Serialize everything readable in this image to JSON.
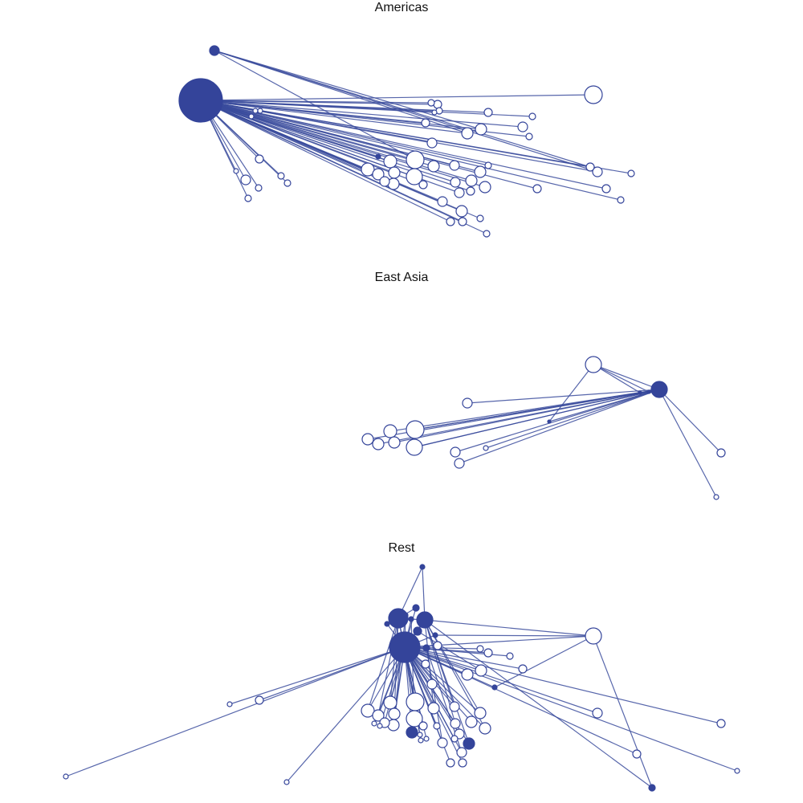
{
  "colors": {
    "edge": "#3a4b9c",
    "hub_fill": "#34449a",
    "leaf_fill": "#ffffff",
    "node_stroke": "#34449a"
  },
  "panels": [
    {
      "title": "Americas",
      "oy": 0,
      "nodes": [
        [
          250,
          125,
          27,
          "hub"
        ],
        [
          267,
          63,
          6,
          "hub"
        ],
        [
          739,
          118,
          11,
          "leaf"
        ],
        [
          537,
          128,
          4,
          "leaf"
        ],
        [
          545,
          130,
          5,
          "leaf"
        ],
        [
          547,
          138,
          4,
          "leaf"
        ],
        [
          541,
          140,
          3,
          "leaf"
        ],
        [
          608,
          140,
          5,
          "leaf"
        ],
        [
          663,
          145,
          4,
          "leaf"
        ],
        [
          651,
          158,
          6,
          "leaf"
        ],
        [
          659,
          170,
          4,
          "leaf"
        ],
        [
          530,
          153,
          5,
          "leaf"
        ],
        [
          599,
          161,
          7,
          "leaf"
        ],
        [
          582,
          166,
          7,
          "leaf"
        ],
        [
          538,
          178,
          6,
          "leaf"
        ],
        [
          318,
          138,
          3,
          "leaf"
        ],
        [
          324,
          138,
          3,
          "leaf"
        ],
        [
          313,
          145,
          3,
          "leaf"
        ],
        [
          471,
          195,
          3,
          "hub"
        ],
        [
          517,
          199,
          11,
          "leaf"
        ],
        [
          486,
          201,
          8,
          "leaf"
        ],
        [
          540,
          207,
          7,
          "leaf"
        ],
        [
          566,
          206,
          6,
          "leaf"
        ],
        [
          608,
          206,
          4,
          "leaf"
        ],
        [
          598,
          214,
          7,
          "leaf"
        ],
        [
          458,
          211,
          8,
          "leaf"
        ],
        [
          471,
          217,
          7,
          "leaf"
        ],
        [
          491,
          215,
          7,
          "leaf"
        ],
        [
          516,
          220,
          10,
          "leaf"
        ],
        [
          479,
          226,
          6,
          "leaf"
        ],
        [
          490,
          229,
          7,
          "leaf"
        ],
        [
          527,
          230,
          5,
          "leaf"
        ],
        [
          567,
          227,
          6,
          "leaf"
        ],
        [
          587,
          225,
          7,
          "leaf"
        ],
        [
          604,
          233,
          7,
          "leaf"
        ],
        [
          572,
          240,
          6,
          "leaf"
        ],
        [
          586,
          238,
          5,
          "leaf"
        ],
        [
          669,
          235,
          5,
          "leaf"
        ],
        [
          551,
          251,
          6,
          "leaf"
        ],
        [
          575,
          263,
          7,
          "leaf"
        ],
        [
          598,
          272,
          4,
          "leaf"
        ],
        [
          561,
          276,
          5,
          "leaf"
        ],
        [
          576,
          276,
          5,
          "leaf"
        ],
        [
          606,
          291,
          4,
          "leaf"
        ],
        [
          735,
          208,
          5,
          "leaf"
        ],
        [
          744,
          214,
          6,
          "leaf"
        ],
        [
          786,
          216,
          4,
          "leaf"
        ],
        [
          755,
          235,
          5,
          "leaf"
        ],
        [
          773,
          249,
          4,
          "leaf"
        ],
        [
          323,
          198,
          5,
          "leaf"
        ],
        [
          294,
          213,
          3,
          "leaf"
        ],
        [
          306,
          224,
          6,
          "leaf"
        ],
        [
          350,
          219,
          4,
          "leaf"
        ],
        [
          358,
          228,
          4,
          "leaf"
        ],
        [
          322,
          234,
          4,
          "leaf"
        ],
        [
          309,
          247,
          4,
          "leaf"
        ]
      ],
      "edges": [
        [
          0,
          2
        ],
        [
          0,
          3
        ],
        [
          0,
          4
        ],
        [
          0,
          5
        ],
        [
          0,
          6
        ],
        [
          0,
          7
        ],
        [
          0,
          8
        ],
        [
          0,
          9
        ],
        [
          0,
          10
        ],
        [
          0,
          11
        ],
        [
          0,
          12
        ],
        [
          0,
          13
        ],
        [
          0,
          14
        ],
        [
          0,
          15
        ],
        [
          0,
          16
        ],
        [
          0,
          17
        ],
        [
          0,
          18
        ],
        [
          0,
          19
        ],
        [
          0,
          20
        ],
        [
          0,
          21
        ],
        [
          0,
          22
        ],
        [
          0,
          23
        ],
        [
          0,
          24
        ],
        [
          0,
          25
        ],
        [
          0,
          26
        ],
        [
          0,
          27
        ],
        [
          0,
          28
        ],
        [
          0,
          29
        ],
        [
          0,
          30
        ],
        [
          0,
          31
        ],
        [
          0,
          32
        ],
        [
          0,
          33
        ],
        [
          0,
          34
        ],
        [
          0,
          35
        ],
        [
          0,
          36
        ],
        [
          0,
          37
        ],
        [
          0,
          38
        ],
        [
          0,
          39
        ],
        [
          0,
          40
        ],
        [
          0,
          41
        ],
        [
          0,
          42
        ],
        [
          0,
          43
        ],
        [
          0,
          44
        ],
        [
          0,
          45
        ],
        [
          0,
          46
        ],
        [
          0,
          47
        ],
        [
          0,
          48
        ],
        [
          0,
          49
        ],
        [
          0,
          50
        ],
        [
          0,
          51
        ],
        [
          0,
          52
        ],
        [
          0,
          53
        ],
        [
          0,
          54
        ],
        [
          0,
          55
        ],
        [
          1,
          44
        ],
        [
          1,
          45
        ],
        [
          1,
          12
        ],
        [
          1,
          19
        ],
        [
          1,
          13
        ]
      ]
    },
    {
      "title": "East Asia",
      "oy": 336,
      "nodes": [
        [
          821,
          149,
          10,
          "hub"
        ],
        [
          797,
          153,
          2,
          "hub"
        ],
        [
          808,
          152,
          2,
          "hub"
        ],
        [
          684,
          189,
          2,
          "hub"
        ],
        [
          739,
          118,
          10,
          "leaf"
        ],
        [
          582,
          166,
          6,
          "leaf"
        ],
        [
          458,
          211,
          7,
          "leaf"
        ],
        [
          486,
          201,
          8,
          "leaf"
        ],
        [
          517,
          199,
          11,
          "leaf"
        ],
        [
          471,
          217,
          7,
          "leaf"
        ],
        [
          491,
          215,
          7,
          "leaf"
        ],
        [
          516,
          221,
          10,
          "leaf"
        ],
        [
          605,
          222,
          3,
          "leaf"
        ],
        [
          567,
          227,
          6,
          "leaf"
        ],
        [
          572,
          241,
          6,
          "leaf"
        ],
        [
          898,
          228,
          5,
          "leaf"
        ],
        [
          892,
          283,
          3,
          "leaf"
        ]
      ],
      "edges": [
        [
          0,
          4
        ],
        [
          0,
          5
        ],
        [
          0,
          6
        ],
        [
          0,
          7
        ],
        [
          0,
          8
        ],
        [
          0,
          9
        ],
        [
          0,
          10
        ],
        [
          0,
          11
        ],
        [
          0,
          12
        ],
        [
          0,
          13
        ],
        [
          0,
          14
        ],
        [
          0,
          15
        ],
        [
          0,
          16
        ],
        [
          0,
          3
        ],
        [
          4,
          1
        ],
        [
          4,
          2
        ],
        [
          4,
          3
        ],
        [
          1,
          8
        ],
        [
          2,
          11
        ]
      ]
    },
    {
      "title": "Rest",
      "oy": 672,
      "nodes": [
        [
          504,
          134,
          19,
          "hub"
        ],
        [
          496,
          98,
          12,
          "hub"
        ],
        [
          529,
          100,
          10,
          "hub"
        ],
        [
          526,
          34,
          3,
          "hub"
        ],
        [
          518,
          85,
          4,
          "hub"
        ],
        [
          505,
          94,
          3,
          "hub"
        ],
        [
          512,
          99,
          3,
          "hub"
        ],
        [
          520,
          114,
          5,
          "hub"
        ],
        [
          542,
          119,
          3,
          "hub"
        ],
        [
          482,
          105,
          3,
          "hub"
        ],
        [
          531,
          135,
          4,
          "hub"
        ],
        [
          616,
          184,
          3,
          "hub"
        ],
        [
          513,
          240,
          7,
          "hub"
        ],
        [
          584,
          254,
          7,
          "hub"
        ],
        [
          812,
          309,
          4,
          "hub"
        ],
        [
          739,
          120,
          10,
          "leaf"
        ],
        [
          545,
          132,
          5,
          "leaf"
        ],
        [
          598,
          136,
          4,
          "leaf"
        ],
        [
          608,
          141,
          5,
          "leaf"
        ],
        [
          635,
          145,
          4,
          "leaf"
        ],
        [
          651,
          161,
          5,
          "leaf"
        ],
        [
          599,
          163,
          7,
          "leaf"
        ],
        [
          582,
          168,
          7,
          "leaf"
        ],
        [
          530,
          155,
          5,
          "leaf"
        ],
        [
          538,
          180,
          6,
          "leaf"
        ],
        [
          517,
          202,
          11,
          "leaf"
        ],
        [
          486,
          203,
          8,
          "leaf"
        ],
        [
          540,
          210,
          7,
          "leaf"
        ],
        [
          566,
          208,
          6,
          "leaf"
        ],
        [
          598,
          216,
          7,
          "leaf"
        ],
        [
          458,
          213,
          8,
          "leaf"
        ],
        [
          471,
          219,
          7,
          "leaf"
        ],
        [
          491,
          217,
          7,
          "leaf"
        ],
        [
          516,
          223,
          10,
          "leaf"
        ],
        [
          479,
          228,
          6,
          "leaf"
        ],
        [
          490,
          231,
          7,
          "leaf"
        ],
        [
          527,
          232,
          5,
          "leaf"
        ],
        [
          567,
          229,
          6,
          "leaf"
        ],
        [
          587,
          227,
          7,
          "leaf"
        ],
        [
          604,
          235,
          7,
          "leaf"
        ],
        [
          572,
          242,
          6,
          "leaf"
        ],
        [
          544,
          232,
          4,
          "leaf"
        ],
        [
          523,
          243,
          3,
          "leaf"
        ],
        [
          524,
          250,
          3,
          "leaf"
        ],
        [
          531,
          248,
          3,
          "leaf"
        ],
        [
          466,
          229,
          3,
          "leaf"
        ],
        [
          473,
          232,
          3,
          "leaf"
        ],
        [
          551,
          253,
          6,
          "leaf"
        ],
        [
          575,
          265,
          6,
          "leaf"
        ],
        [
          561,
          278,
          5,
          "leaf"
        ],
        [
          576,
          278,
          5,
          "leaf"
        ],
        [
          566,
          248,
          4,
          "leaf"
        ],
        [
          744,
          216,
          6,
          "leaf"
        ],
        [
          898,
          229,
          5,
          "leaf"
        ],
        [
          793,
          267,
          5,
          "leaf"
        ],
        [
          918,
          288,
          3,
          "leaf"
        ],
        [
          323,
          200,
          5,
          "leaf"
        ],
        [
          286,
          205,
          3,
          "leaf"
        ],
        [
          82,
          295,
          3,
          "leaf"
        ],
        [
          357,
          302,
          3,
          "leaf"
        ]
      ],
      "edges": [
        [
          0,
          15
        ],
        [
          0,
          16
        ],
        [
          0,
          17
        ],
        [
          0,
          18
        ],
        [
          0,
          19
        ],
        [
          0,
          20
        ],
        [
          0,
          21
        ],
        [
          0,
          22
        ],
        [
          0,
          23
        ],
        [
          0,
          24
        ],
        [
          0,
          25
        ],
        [
          0,
          26
        ],
        [
          0,
          27
        ],
        [
          0,
          28
        ],
        [
          0,
          29
        ],
        [
          0,
          30
        ],
        [
          0,
          31
        ],
        [
          0,
          32
        ],
        [
          0,
          33
        ],
        [
          0,
          34
        ],
        [
          0,
          35
        ],
        [
          0,
          36
        ],
        [
          0,
          37
        ],
        [
          0,
          38
        ],
        [
          0,
          39
        ],
        [
          0,
          40
        ],
        [
          0,
          41
        ],
        [
          0,
          42
        ],
        [
          0,
          43
        ],
        [
          0,
          44
        ],
        [
          0,
          45
        ],
        [
          0,
          46
        ],
        [
          0,
          47
        ],
        [
          0,
          48
        ],
        [
          0,
          49
        ],
        [
          0,
          50
        ],
        [
          0,
          51
        ],
        [
          0,
          12
        ],
        [
          0,
          13
        ],
        [
          0,
          11
        ],
        [
          0,
          52
        ],
        [
          0,
          53
        ],
        [
          0,
          54
        ],
        [
          0,
          55
        ],
        [
          0,
          56
        ],
        [
          0,
          57
        ],
        [
          0,
          58
        ],
        [
          0,
          59
        ],
        [
          0,
          1
        ],
        [
          0,
          2
        ],
        [
          0,
          4
        ],
        [
          0,
          5
        ],
        [
          0,
          6
        ],
        [
          0,
          7
        ],
        [
          0,
          8
        ],
        [
          0,
          9
        ],
        [
          0,
          10
        ],
        [
          1,
          2
        ],
        [
          1,
          3
        ],
        [
          1,
          4
        ],
        [
          1,
          9
        ],
        [
          1,
          26
        ],
        [
          1,
          30
        ],
        [
          1,
          31
        ],
        [
          1,
          25
        ],
        [
          1,
          32
        ],
        [
          2,
          15
        ],
        [
          2,
          3
        ],
        [
          2,
          7
        ],
        [
          2,
          27
        ],
        [
          2,
          28
        ],
        [
          2,
          37
        ],
        [
          2,
          29
        ],
        [
          2,
          39
        ],
        [
          2,
          13
        ],
        [
          15,
          11
        ],
        [
          15,
          14
        ],
        [
          2,
          14
        ],
        [
          8,
          15
        ],
        [
          7,
          21
        ],
        [
          10,
          47
        ],
        [
          10,
          48
        ],
        [
          6,
          33
        ],
        [
          5,
          35
        ]
      ]
    }
  ]
}
